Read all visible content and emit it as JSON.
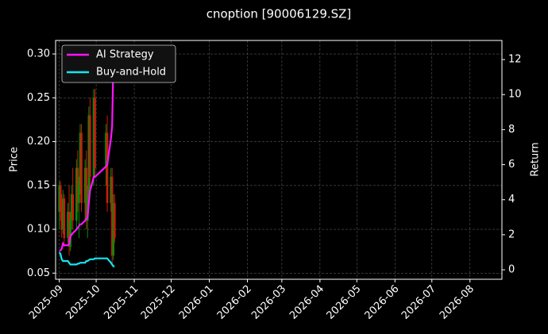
{
  "chart_data": {
    "type": "candlestick",
    "title": "cnoption [90006129.SZ]",
    "ylabel": "Price",
    "y2label": "Return",
    "x": [
      "2025-09-01",
      "2025-09-02",
      "2025-09-03",
      "2025-09-04",
      "2025-09-05",
      "2025-09-08",
      "2025-09-09",
      "2025-09-10",
      "2025-09-11",
      "2025-09-12",
      "2025-09-15",
      "2025-09-16",
      "2025-09-17",
      "2025-09-18",
      "2025-09-19",
      "2025-09-22",
      "2025-09-23",
      "2025-09-24",
      "2025-09-25",
      "2025-09-26",
      "2025-09-29",
      "2025-09-30",
      "2025-10-09",
      "2025-10-10",
      "2025-10-13",
      "2025-10-14",
      "2025-10-15",
      "2025-10-16"
    ],
    "open": [
      0.12,
      0.15,
      0.12,
      0.1,
      0.135,
      0.09,
      0.12,
      0.08,
      0.11,
      0.14,
      0.11,
      0.17,
      0.13,
      0.15,
      0.21,
      0.13,
      0.17,
      0.11,
      0.14,
      0.23,
      0.16,
      0.25,
      0.17,
      0.21,
      0.13,
      0.16,
      0.07,
      0.13
    ],
    "high": [
      0.155,
      0.155,
      0.14,
      0.145,
      0.14,
      0.13,
      0.15,
      0.12,
      0.15,
      0.17,
      0.18,
      0.19,
      0.16,
      0.22,
      0.22,
      0.18,
      0.19,
      0.15,
      0.24,
      0.25,
      0.26,
      0.26,
      0.22,
      0.23,
      0.17,
      0.17,
      0.14,
      0.14
    ],
    "low": [
      0.1,
      0.11,
      0.09,
      0.095,
      0.08,
      0.085,
      0.07,
      0.075,
      0.1,
      0.1,
      0.1,
      0.12,
      0.09,
      0.14,
      0.12,
      0.11,
      0.1,
      0.09,
      0.13,
      0.14,
      0.15,
      0.16,
      0.15,
      0.12,
      0.12,
      0.06,
      0.065,
      0.085
    ],
    "close": [
      0.15,
      0.12,
      0.1,
      0.135,
      0.09,
      0.12,
      0.08,
      0.11,
      0.14,
      0.11,
      0.17,
      0.13,
      0.15,
      0.21,
      0.13,
      0.17,
      0.11,
      0.14,
      0.23,
      0.16,
      0.25,
      0.17,
      0.21,
      0.13,
      0.16,
      0.07,
      0.13,
      0.09
    ],
    "up_color": "#0a8a0a",
    "down_color": "#c81e0a",
    "series": [
      {
        "name": "AI Strategy",
        "color": "#ff14ff",
        "axis": "y2",
        "values": [
          1.1,
          1.1,
          1.2,
          1.5,
          1.4,
          1.4,
          1.5,
          1.9,
          2.0,
          2.1,
          2.3,
          2.4,
          2.5,
          2.6,
          2.6,
          2.8,
          2.9,
          3.0,
          3.8,
          4.5,
          5.3,
          5.3,
          5.9,
          6.0,
          7.5,
          8.2,
          12.0,
          12.8
        ]
      },
      {
        "name": "Buy-and-Hold",
        "color": "#14e6f0",
        "axis": "y2",
        "values": [
          1.0,
          0.9,
          0.6,
          0.5,
          0.5,
          0.5,
          0.4,
          0.3,
          0.3,
          0.3,
          0.3,
          0.35,
          0.35,
          0.4,
          0.4,
          0.4,
          0.5,
          0.5,
          0.55,
          0.6,
          0.6,
          0.65,
          0.65,
          0.65,
          0.4,
          0.3,
          0.2,
          0.2
        ]
      }
    ],
    "xlim": [
      "2025-08-29",
      "2026-08-27"
    ],
    "xticks": [
      "2025-09",
      "2025-10",
      "2025-11",
      "2025-12",
      "2026-01",
      "2026-02",
      "2026-03",
      "2026-04",
      "2026-05",
      "2026-06",
      "2026-07",
      "2026-08"
    ],
    "ylim": [
      0.043,
      0.3154
    ],
    "yticks": [
      0.05,
      {
        "value": 0.1,
        "label": "0.10"
      },
      0.15,
      {
        "value": 0.2,
        "label": "0.20"
      },
      0.25,
      {
        "value": 0.3,
        "label": "0.30"
      }
    ],
    "y2lim": [
      -0.54,
      13.09
    ],
    "y2ticks": [
      0,
      2,
      4,
      6,
      8,
      10,
      12
    ],
    "grid": true,
    "legend": "upper left"
  }
}
